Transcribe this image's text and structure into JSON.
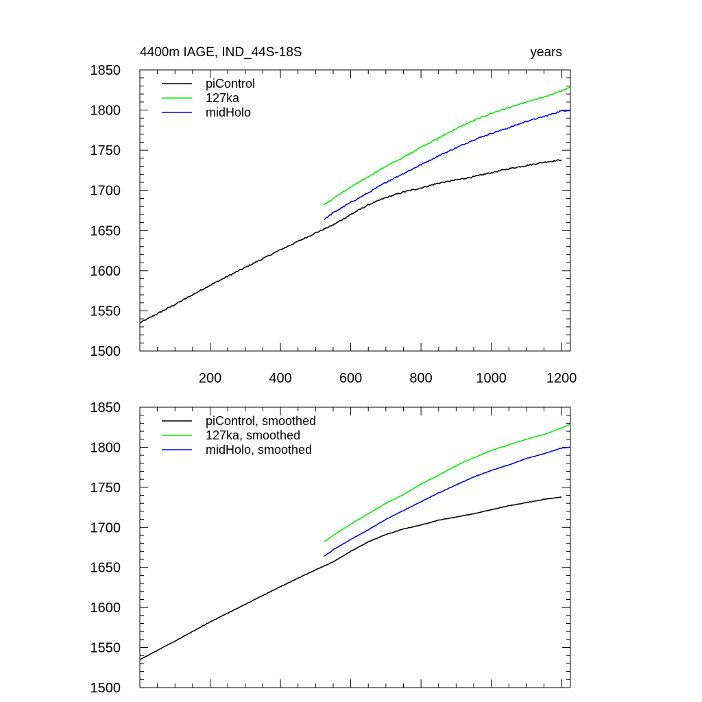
{
  "chart_data": [
    {
      "type": "line",
      "title_left": "4400m IAGE, IND_44S-18S",
      "title_right": "years",
      "xlabel": "",
      "ylabel": "",
      "xlim": [
        0,
        1225
      ],
      "ylim": [
        1500,
        1850
      ],
      "yticks": [
        1500,
        1550,
        1600,
        1650,
        1700,
        1750,
        1800,
        1850
      ],
      "xticks": [
        200,
        400,
        600,
        800,
        1000,
        1200
      ],
      "show_xtick_labels": true,
      "legend_position": "top-left",
      "noise": 1.6,
      "series": [
        {
          "name": "piControl",
          "color": "#000000",
          "x": [
            0,
            100,
            200,
            300,
            400,
            500,
            550,
            600,
            650,
            700,
            750,
            800,
            850,
            900,
            950,
            1000,
            1050,
            1100,
            1150,
            1200
          ],
          "values": [
            1535,
            1558,
            1582,
            1604,
            1626,
            1647,
            1657,
            1670,
            1682,
            1691,
            1698,
            1703,
            1709,
            1713,
            1717,
            1722,
            1727,
            1731,
            1735,
            1738
          ]
        },
        {
          "name": "127ka",
          "color": "#00ee00",
          "x": [
            525,
            550,
            600,
            650,
            700,
            750,
            800,
            850,
            900,
            950,
            1000,
            1050,
            1100,
            1150,
            1200,
            1225
          ],
          "values": [
            1682,
            1690,
            1704,
            1717,
            1730,
            1741,
            1754,
            1765,
            1777,
            1787,
            1796,
            1803,
            1810,
            1816,
            1824,
            1829
          ]
        },
        {
          "name": "midHolo",
          "color": "#0000ee",
          "x": [
            525,
            550,
            600,
            650,
            700,
            750,
            800,
            850,
            900,
            950,
            1000,
            1050,
            1100,
            1150,
            1200,
            1225
          ],
          "values": [
            1664,
            1672,
            1685,
            1697,
            1710,
            1721,
            1732,
            1743,
            1753,
            1763,
            1771,
            1778,
            1786,
            1792,
            1799,
            1800
          ]
        }
      ]
    },
    {
      "type": "line",
      "title_left": "",
      "title_right": "",
      "xlabel": "",
      "ylabel": "",
      "xlim": [
        0,
        1225
      ],
      "ylim": [
        1500,
        1850
      ],
      "yticks": [
        1500,
        1550,
        1600,
        1650,
        1700,
        1750,
        1800,
        1850
      ],
      "xticks": [
        200,
        400,
        600,
        800,
        1000,
        1200
      ],
      "show_xtick_labels": false,
      "legend_position": "top-left",
      "noise": 0.5,
      "series": [
        {
          "name": "piControl, smoothed",
          "color": "#000000",
          "x": [
            0,
            100,
            200,
            300,
            400,
            500,
            550,
            600,
            650,
            700,
            750,
            800,
            850,
            900,
            950,
            1000,
            1050,
            1100,
            1150,
            1200
          ],
          "values": [
            1535,
            1558,
            1582,
            1604,
            1626,
            1647,
            1657,
            1670,
            1682,
            1691,
            1698,
            1703,
            1709,
            1713,
            1717,
            1722,
            1727,
            1731,
            1735,
            1738
          ]
        },
        {
          "name": "127ka, smoothed",
          "color": "#00ee00",
          "x": [
            525,
            550,
            600,
            650,
            700,
            750,
            800,
            850,
            900,
            950,
            1000,
            1050,
            1100,
            1150,
            1200,
            1225
          ],
          "values": [
            1682,
            1690,
            1704,
            1717,
            1730,
            1741,
            1754,
            1765,
            1777,
            1787,
            1796,
            1803,
            1810,
            1816,
            1824,
            1829
          ]
        },
        {
          "name": "midHolo, smoothed",
          "color": "#0000ee",
          "x": [
            525,
            550,
            600,
            650,
            700,
            750,
            800,
            850,
            900,
            950,
            1000,
            1050,
            1100,
            1150,
            1200,
            1225
          ],
          "values": [
            1664,
            1672,
            1685,
            1697,
            1710,
            1721,
            1732,
            1743,
            1753,
            1763,
            1771,
            1778,
            1786,
            1792,
            1799,
            1800
          ]
        }
      ]
    }
  ]
}
